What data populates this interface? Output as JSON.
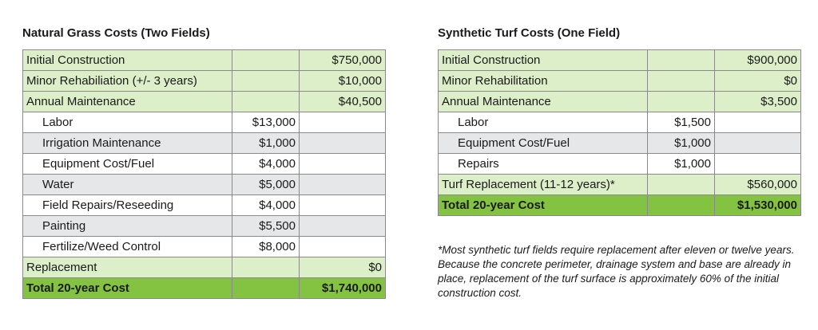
{
  "natural": {
    "title": "Natural Grass Costs (Two Fields)",
    "rows": [
      {
        "label": "Initial Construction",
        "sub": "",
        "total": "$750,000"
      },
      {
        "label": "Minor Rehabiliation (+/- 3 years)",
        "sub": "",
        "total": "$10,000"
      },
      {
        "label": "Annual Maintenance",
        "sub": "",
        "total": "$40,500"
      },
      {
        "label": "Labor",
        "sub": "$13,000",
        "total": ""
      },
      {
        "label": "Irrigation Maintenance",
        "sub": "$1,000",
        "total": ""
      },
      {
        "label": "Equipment Cost/Fuel",
        "sub": "$4,000",
        "total": ""
      },
      {
        "label": "Water",
        "sub": "$5,000",
        "total": ""
      },
      {
        "label": "Field Repairs/Reseeding",
        "sub": "$4,000",
        "total": ""
      },
      {
        "label": "Painting",
        "sub": "$5,500",
        "total": ""
      },
      {
        "label": "Fertilize/Weed Control",
        "sub": "$8,000",
        "total": ""
      },
      {
        "label": "Replacement",
        "sub": "",
        "total": "$0"
      },
      {
        "label": "Total 20-year Cost",
        "sub": "",
        "total": "$1,740,000"
      }
    ]
  },
  "synthetic": {
    "title": "Synthetic Turf Costs (One Field)",
    "rows": [
      {
        "label": "Initial Construction",
        "sub": "",
        "total": "$900,000"
      },
      {
        "label": "Minor Rehabilitation",
        "sub": "",
        "total": "$0"
      },
      {
        "label": "Annual Maintenance",
        "sub": "",
        "total": "$3,500"
      },
      {
        "label": "Labor",
        "sub": "$1,500",
        "total": ""
      },
      {
        "label": "Equipment Cost/Fuel",
        "sub": "$1,000",
        "total": ""
      },
      {
        "label": "Repairs",
        "sub": "$1,000",
        "total": ""
      },
      {
        "label": "Turf Replacement (11-12 years)*",
        "sub": "",
        "total": "$560,000"
      },
      {
        "label": "Total 20-year Cost",
        "sub": "",
        "total": "$1,530,000"
      }
    ],
    "footnote": "*Most synthetic turf fields require replacement after eleven or twelve years. Because the concrete perimeter, drainage system and base are already in place, replacement of the turf surface is approximately 60% of the initial construction cost."
  },
  "colors": {
    "header_green": "#dcefc9",
    "total_green": "#84c341",
    "alt_gray": "#e6e7e9",
    "border": "#8a8a8a"
  }
}
